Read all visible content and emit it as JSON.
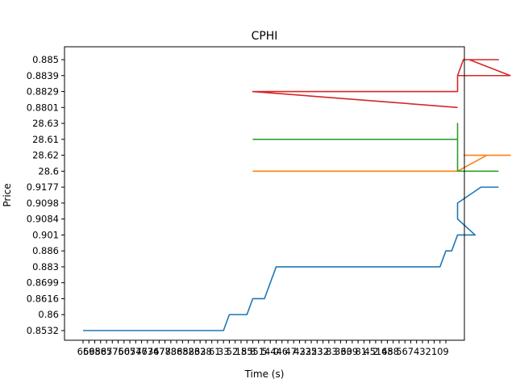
{
  "chart_data": {
    "type": "line",
    "title": "CPHI",
    "xlabel": "Time (s)",
    "ylabel": "Price",
    "grid": false,
    "legend": "none",
    "y_categories": [
      "0.8532",
      "0.86",
      "0.8616",
      "0.8699",
      "0.883",
      "0.886",
      "0.901",
      "0.9084",
      "0.9098",
      "0.9177",
      "28.6",
      "28.62",
      "28.61",
      "28.63",
      "0.8801",
      "0.8829",
      "0.8839",
      "0.885"
    ],
    "x_tick_labels": [
      "66",
      "59",
      "68",
      "58",
      "67",
      "57",
      "75",
      "60",
      "65",
      "74",
      "77",
      "63",
      "76",
      "47",
      "78",
      "73",
      "86",
      "88",
      "52",
      "83",
      "62",
      "38",
      "6",
      "1",
      "33",
      "5",
      "2",
      "18",
      "55",
      "8",
      "51",
      "5",
      "44",
      "0",
      "46",
      "4",
      "7",
      "43",
      "22",
      "35",
      "23",
      "32",
      "8",
      "3",
      "36",
      "30",
      "39",
      "8",
      "1",
      "45",
      "2",
      "16",
      "45",
      "88",
      "5",
      "6",
      "7",
      "4",
      "3",
      "2",
      "1",
      "0",
      "9"
    ],
    "series": [
      {
        "color": "#1f77b4",
        "points": [
          [
            0,
            "0.8532"
          ],
          [
            24,
            "0.8532"
          ],
          [
            25,
            "0.86"
          ],
          [
            28,
            "0.86"
          ],
          [
            29,
            "0.8616"
          ],
          [
            31,
            "0.8616"
          ],
          [
            33,
            "0.883"
          ],
          [
            61,
            "0.883"
          ],
          [
            62,
            "0.886"
          ],
          [
            63,
            "0.886"
          ],
          [
            64,
            "0.901"
          ],
          [
            67,
            "0.901"
          ],
          [
            64,
            "0.9084"
          ],
          [
            64,
            "0.9098"
          ],
          [
            68,
            "0.9177"
          ],
          [
            71,
            "0.9177"
          ]
        ]
      },
      {
        "color": "#ff7f0e",
        "points": [
          [
            29,
            "28.6"
          ],
          [
            64,
            "28.6"
          ],
          [
            64,
            "28.6"
          ],
          [
            69,
            "28.62"
          ],
          [
            73,
            "28.62"
          ],
          [
            65,
            "28.62"
          ]
        ]
      },
      {
        "color": "#2ca02c",
        "points": [
          [
            29,
            "28.61"
          ],
          [
            64,
            "28.61"
          ],
          [
            64,
            "28.63"
          ],
          [
            64,
            "28.6"
          ],
          [
            71,
            "28.6"
          ]
        ]
      },
      {
        "color": "#d62728",
        "points": [
          [
            29,
            "0.8829"
          ],
          [
            64,
            "0.8829"
          ],
          [
            64,
            "0.8839"
          ],
          [
            65,
            "0.885"
          ],
          [
            71,
            "0.885"
          ],
          [
            66,
            "0.885"
          ],
          [
            73,
            "0.8839"
          ],
          [
            64,
            "0.8839"
          ],
          [
            64,
            "0.8829"
          ],
          [
            29,
            "0.8829"
          ],
          [
            64,
            "0.8801"
          ]
        ]
      }
    ]
  }
}
